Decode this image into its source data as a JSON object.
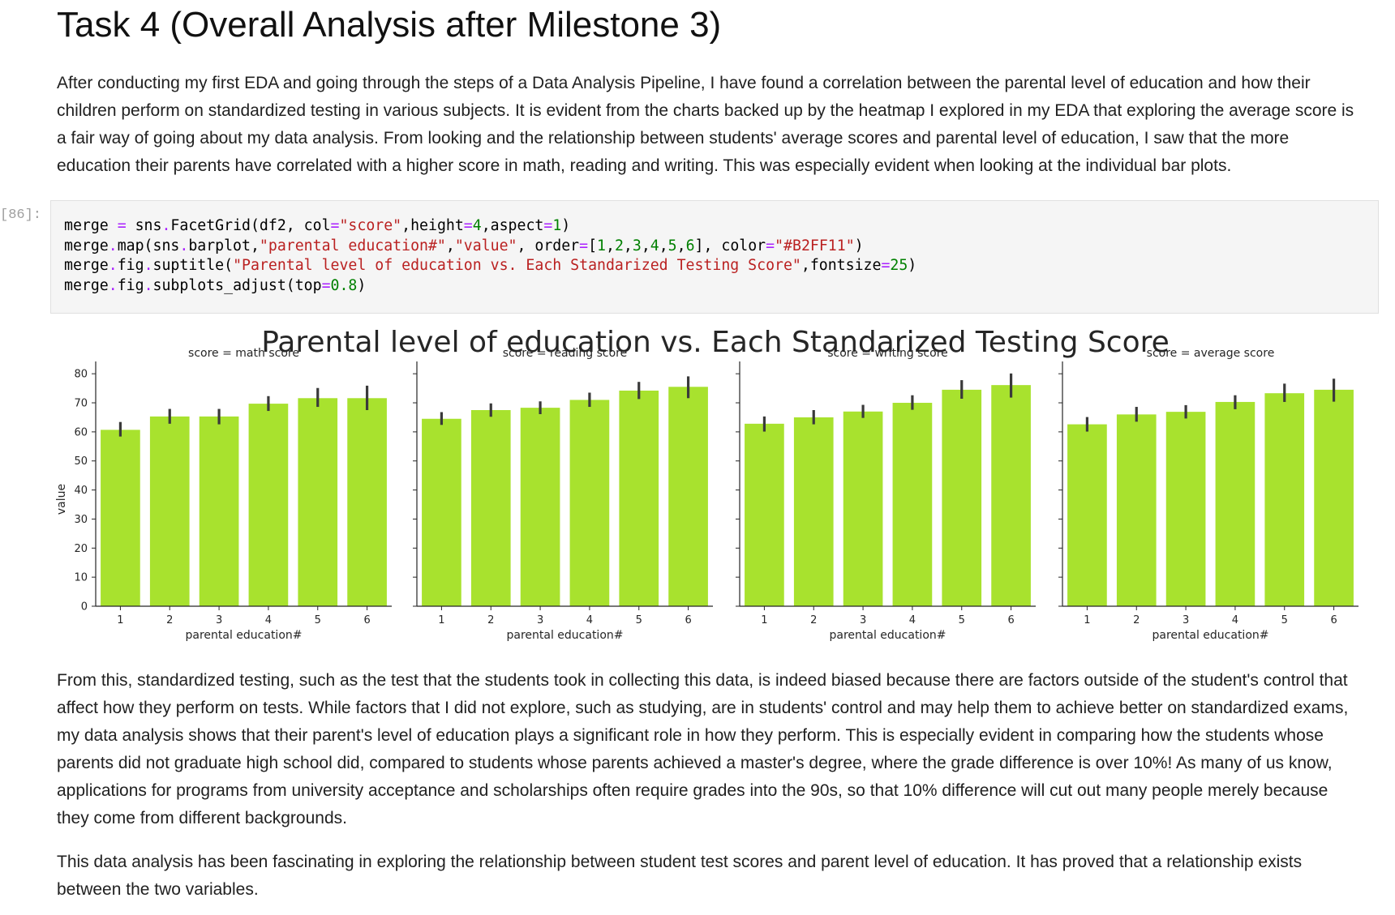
{
  "heading": "Task 4 (Overall Analysis after Milestone 3)",
  "intro_paragraph": "After conducting my first EDA and going through the steps of a Data Analysis Pipeline, I have found a correlation between the parental level of education and how their children perform on standardized testing in various subjects. It is evident from the charts backed up by the heatmap I explored in my EDA that exploring the average score is a fair way of going about my data analysis. From looking and the relationship between students' average scores and parental level of education, I saw that the more education their parents have correlated with a higher score in math, reading and writing. This was especially evident when looking at the individual bar plots.",
  "code_cell": {
    "prompt": "[86]:",
    "lines": [
      "merge = sns.FacetGrid(df2, col=\"score\",height=4,aspect=1)",
      "merge.map(sns.barplot,\"parental education#\",\"value\", order=[1,2,3,4,5,6], color=\"#B2FF11\")",
      "merge.fig.suptitle(\"Parental level of education vs. Each Standarized Testing Score\",fontsize=25)",
      "merge.fig.subplots_adjust(top=0.8)"
    ]
  },
  "chart_data": {
    "type": "bar",
    "title": "Parental level of education vs. Each Standarized Testing Score",
    "ylabel": "value",
    "xlabel": "parental education#",
    "ylim": [
      0,
      82
    ],
    "yticks": [
      0,
      10,
      20,
      30,
      40,
      50,
      60,
      70,
      80
    ],
    "categories": [
      "1",
      "2",
      "3",
      "4",
      "5",
      "6"
    ],
    "bar_color": "#A8E22E",
    "errorbar_color": "#3a3a3a",
    "grid": false,
    "facets": [
      {
        "title": "score = math score",
        "values": [
          60.7,
          65.3,
          65.3,
          69.7,
          71.6,
          71.6
        ],
        "err_low": [
          58.4,
          62.8,
          62.6,
          67.2,
          68.6,
          67.5
        ],
        "err_high": [
          63.4,
          67.9,
          67.9,
          72.3,
          75.1,
          75.9
        ]
      },
      {
        "title": "score = reading score",
        "values": [
          64.5,
          67.5,
          68.3,
          71.0,
          74.2,
          75.5
        ],
        "err_low": [
          62.4,
          65.2,
          66.1,
          68.6,
          71.3,
          71.6
        ],
        "err_high": [
          66.8,
          69.8,
          70.5,
          73.5,
          77.2,
          79.1
        ]
      },
      {
        "title": "score = writing score",
        "values": [
          62.8,
          65.0,
          67.0,
          70.0,
          74.5,
          76.1
        ],
        "err_low": [
          60.1,
          62.6,
          64.8,
          67.6,
          71.4,
          71.8
        ],
        "err_high": [
          65.3,
          67.5,
          69.3,
          72.6,
          77.8,
          80.1
        ]
      },
      {
        "title": "score = average score",
        "values": [
          62.6,
          66.0,
          66.9,
          70.3,
          73.3,
          74.5
        ],
        "err_low": [
          60.1,
          63.5,
          64.6,
          67.8,
          70.3,
          70.4
        ],
        "err_high": [
          65.1,
          68.6,
          69.2,
          72.6,
          76.6,
          78.3
        ]
      }
    ]
  },
  "conclusion_paragraph": "From this, standardized testing, such as the test that the students took in collecting this data, is indeed biased because there are factors outside of the student's control that affect how they perform on tests. While factors that I did not explore, such as studying, are in students' control and may help them to achieve better on standardized exams, my data analysis shows that their parent's level of education plays a significant role in how they perform. This is especially evident in comparing how the students whose parents did not graduate high school did, compared to students whose parents achieved a master's degree, where the grade difference is over 10%! As many of us know, applications for programs from university acceptance and scholarships often require grades into the 90s, so that 10% difference will cut out many people merely because they come from different backgrounds.",
  "closing_paragraph": "This data analysis has been fascinating in exploring the relationship between student test scores and parent level of education. It has proved that a relationship exists between the two variables."
}
